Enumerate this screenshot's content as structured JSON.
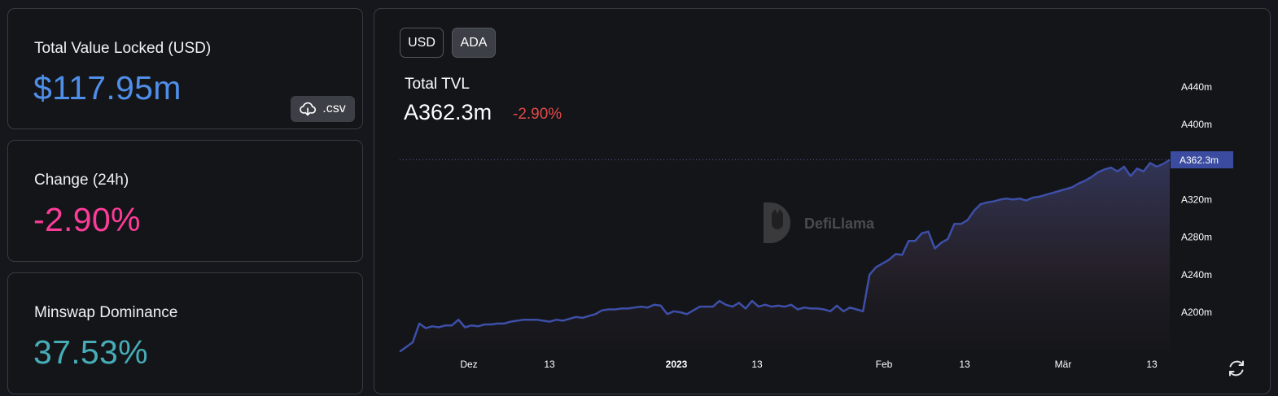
{
  "cards": {
    "tvl": {
      "label": "Total Value Locked (USD)",
      "value": "$117.95m",
      "csv_label": ".csv"
    },
    "change": {
      "label": "Change (24h)",
      "value": "-2.90%"
    },
    "dominance": {
      "label": "Minswap Dominance",
      "value": "37.53%"
    }
  },
  "chart_panel": {
    "denominations": [
      "USD",
      "ADA"
    ],
    "selected": "ADA",
    "title": "Total TVL",
    "value": "A362.3m",
    "change": "-2.90%",
    "watermark": "DefiLlama",
    "current_label": "A362.3m"
  },
  "colors": {
    "tvl_value": "#4f8fea",
    "change_value": "#fd3c99",
    "dominance_value": "#46acb7",
    "line": "#3d4fa8",
    "negative": "#e24a4a"
  },
  "chart_data": {
    "type": "area",
    "title": "Total TVL",
    "xlabel": "",
    "ylabel": "",
    "x_ticks": [
      "Dez",
      "13",
      "2023",
      "13",
      "Feb",
      "13",
      "Mär",
      "13"
    ],
    "y_ticks": [
      "A200m",
      "A240m",
      "A280m",
      "A320m",
      "A400m",
      "A440m"
    ],
    "ylim": [
      160,
      440
    ],
    "current_value": 362.3,
    "grid": false,
    "series": [
      {
        "values": [
          158,
          163,
          168,
          188,
          183,
          185,
          184,
          186,
          186,
          192,
          184,
          186,
          185,
          187,
          187,
          188,
          188,
          190,
          191,
          192,
          192,
          192,
          191,
          190,
          192,
          191,
          193,
          195,
          194,
          196,
          198,
          202,
          203,
          203,
          204,
          204,
          205,
          206,
          205,
          208,
          207,
          198,
          201,
          200,
          198,
          202,
          206,
          206,
          206,
          212,
          208,
          206,
          210,
          204,
          212,
          206,
          208,
          206,
          207,
          206,
          208,
          203,
          205,
          204,
          204,
          203,
          201,
          207,
          201,
          205,
          203,
          201,
          240,
          248,
          252,
          256,
          262,
          261,
          276,
          276,
          284,
          286,
          268,
          274,
          278,
          294,
          294,
          298,
          308,
          315,
          317,
          318,
          320,
          321,
          320,
          321,
          319,
          322,
          323,
          325,
          327,
          329,
          331,
          333,
          337,
          340,
          344,
          349,
          352,
          354,
          350,
          355,
          345,
          353,
          350,
          359,
          355,
          358,
          362.3
        ]
      }
    ]
  }
}
